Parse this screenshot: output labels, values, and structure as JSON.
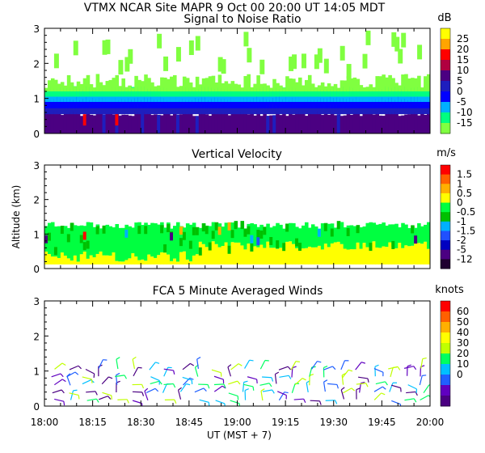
{
  "header": {
    "line1": "VTMX   NCAR Site   MAPR   9 Oct 00   20:00 UT   14:05   MDT"
  },
  "shared": {
    "x_tick_labels": [
      "18:00",
      "18:15",
      "18:30",
      "18:45",
      "19:00",
      "19:15",
      "19:30",
      "19:45",
      "20:00"
    ],
    "x_label": "UT  (MST + 7)",
    "y_label": "Altitude (km)",
    "y_tick_labels": [
      "0",
      "1",
      "2",
      "3"
    ]
  },
  "chart_data": [
    {
      "type": "heatmap",
      "title": "Signal to Noise Ratio",
      "unit": "dB",
      "x_range": [
        "18:00",
        "20:00"
      ],
      "ylim": [
        0,
        3
      ],
      "colorbar": {
        "labels": [
          "25",
          "20",
          "15",
          "10",
          "5",
          "0",
          "-5",
          "-10",
          "-15"
        ],
        "colors": [
          "#ffff00",
          "#ffa500",
          "#ff0000",
          "#b00040",
          "#4b0082",
          "#1e1ebe",
          "#0000ff",
          "#00b0ff",
          "#00ff80",
          "#80ff40"
        ]
      },
      "layers": [
        {
          "from": 0.0,
          "to": 0.6,
          "level": "0 to 5"
        },
        {
          "from": 0.6,
          "to": 0.9,
          "level": "-5 to 0"
        },
        {
          "from": 0.9,
          "to": 1.4,
          "level": "-15 to -10"
        }
      ]
    },
    {
      "type": "heatmap",
      "title": "Vertical Velocity",
      "unit": "m/s",
      "x_range": [
        "18:00",
        "20:00"
      ],
      "ylim": [
        0,
        3
      ],
      "colorbar": {
        "labels": [
          "1.5",
          "1",
          "0.5",
          "0",
          "-0.5",
          "-1",
          "-1.5",
          "-2",
          "-5",
          "-12"
        ],
        "colors": [
          "#ff0000",
          "#ff6000",
          "#ffb000",
          "#ffff00",
          "#00ff40",
          "#00c000",
          "#00b0ff",
          "#2050ff",
          "#0000c0",
          "#4b0082",
          "#200030"
        ]
      },
      "layers": [
        {
          "from": 0.1,
          "to": 0.7,
          "level": "0 to 0.5"
        },
        {
          "from": 0.7,
          "to": 1.3,
          "level": "-0.5 to 0"
        }
      ]
    },
    {
      "type": "scatter",
      "title": "FCA 5 Minute Averaged Winds",
      "unit": "knots",
      "x_range": [
        "18:00",
        "20:00"
      ],
      "ylim": [
        0,
        3
      ],
      "colorbar": {
        "labels": [
          "60",
          "50",
          "40",
          "30",
          "20",
          "10",
          "0"
        ],
        "colors": [
          "#ff0000",
          "#ff6000",
          "#ffb000",
          "#ffff00",
          "#c0ff00",
          "#00ff60",
          "#00c0ff",
          "#2060ff",
          "#6000c0",
          "#4b0082"
        ]
      },
      "wind_altitude_range": [
        0,
        1.2
      ]
    }
  ]
}
